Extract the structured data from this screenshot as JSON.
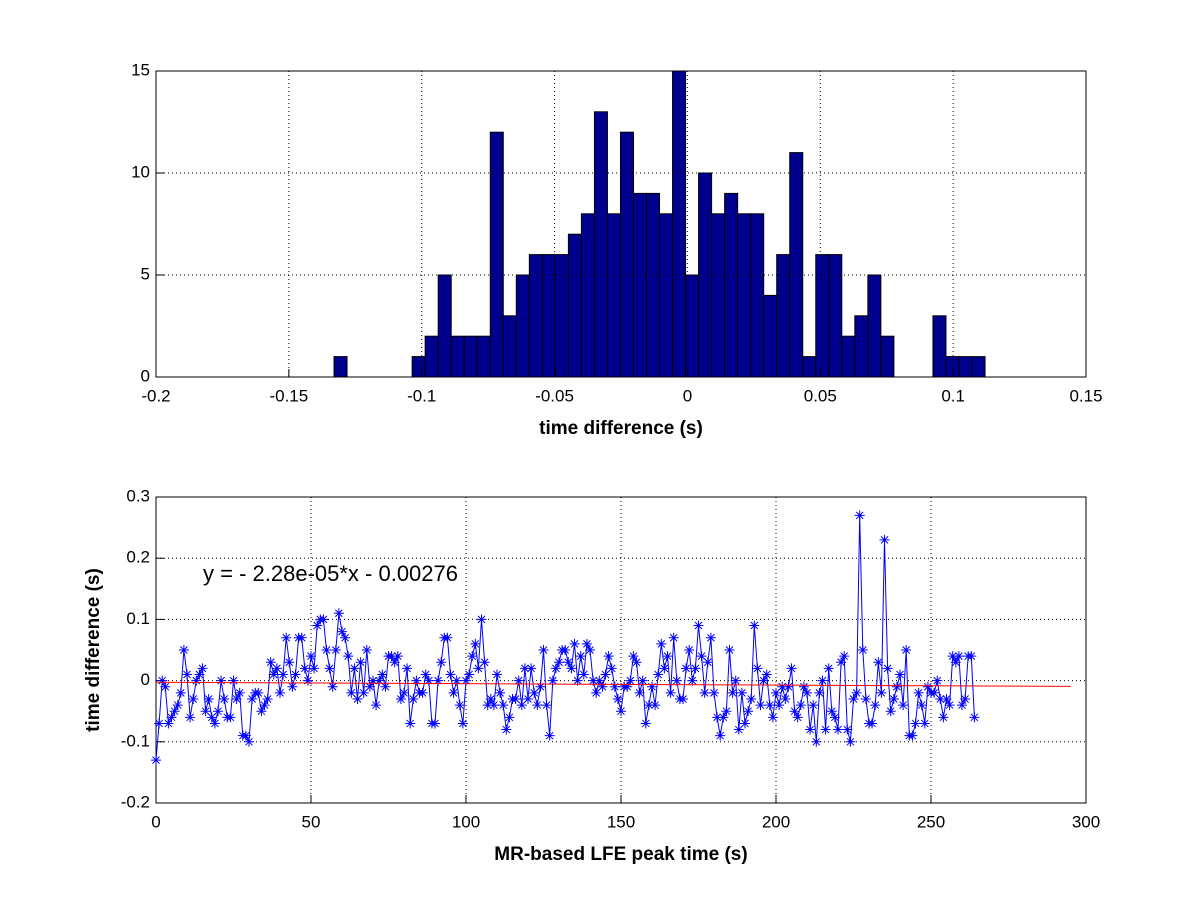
{
  "chart_data": [
    {
      "type": "histogram",
      "xlabel": "time difference (s)",
      "bins": [
        -0.133,
        -0.1281,
        -0.1232,
        -0.1183,
        -0.1134,
        -0.1085,
        -0.1036,
        -0.0987,
        -0.0938,
        -0.0889,
        -0.084,
        -0.0791,
        -0.0742,
        -0.0693,
        -0.0644,
        -0.0595,
        -0.0546,
        -0.0497,
        -0.0448,
        -0.0399,
        -0.035,
        -0.0301,
        -0.0252,
        -0.0203,
        -0.0154,
        -0.0105,
        -0.0056,
        -0.0007,
        0.0042,
        0.0091,
        0.014,
        0.0189,
        0.0238,
        0.0287,
        0.0336,
        0.0385,
        0.0434,
        0.0483,
        0.0532,
        0.0581,
        0.063,
        0.0679,
        0.0728,
        0.0777,
        0.0826,
        0.0875,
        0.0924,
        0.0973,
        0.1022,
        0.1071,
        0.112
      ],
      "counts": [
        1,
        0,
        0,
        0,
        0,
        0,
        1,
        2,
        5,
        2,
        2,
        2,
        12,
        3,
        5,
        6,
        6,
        6,
        7,
        8,
        13,
        8,
        12,
        9,
        9,
        8,
        15,
        5,
        10,
        8,
        9,
        8,
        8,
        4,
        6,
        11,
        1,
        6,
        6,
        2,
        3,
        5,
        2,
        0,
        0,
        0,
        3,
        1,
        1,
        1
      ],
      "color": "#00008f",
      "edgecolor": "#000000",
      "xlim": [
        -0.2,
        0.15
      ],
      "xticks": [
        -0.2,
        -0.15,
        -0.1,
        -0.05,
        0,
        0.05,
        0.1,
        0.15
      ],
      "ylim": [
        0,
        15
      ],
      "yticks": [
        0,
        5,
        10,
        15
      ],
      "grid": true
    },
    {
      "type": "line",
      "xlabel": "MR-based LFE peak time (s)",
      "ylabel": "time difference (s)",
      "annotation": "y = - 2.28e-05*x - 0.00276",
      "series": [
        {
          "color": "#0000ff",
          "marker": "*",
          "x": [
            0,
            1,
            2,
            3,
            4,
            5,
            6,
            7,
            8,
            9,
            10,
            11,
            12,
            13,
            14,
            15,
            16,
            17,
            18,
            19,
            20,
            21,
            22,
            23,
            24,
            25,
            26,
            27,
            28,
            29,
            30,
            31,
            32,
            33,
            34,
            35,
            36,
            37,
            38,
            39,
            40,
            41,
            42,
            43,
            44,
            45,
            46,
            47,
            48,
            49,
            50,
            51,
            52,
            53,
            54,
            55,
            56,
            57,
            58,
            59,
            60,
            61,
            62,
            63,
            64,
            65,
            66,
            67,
            68,
            69,
            70,
            71,
            72,
            73,
            74,
            75,
            76,
            77,
            78,
            79,
            80,
            81,
            82,
            83,
            84,
            85,
            86,
            87,
            88,
            89,
            90,
            91,
            92,
            93,
            94,
            95,
            96,
            97,
            98,
            99,
            100,
            101,
            102,
            103,
            104,
            105,
            106,
            107,
            108,
            109,
            110,
            111,
            112,
            113,
            114,
            115,
            116,
            117,
            118,
            119,
            120,
            121,
            122,
            123,
            124,
            125,
            126,
            127,
            128,
            129,
            130,
            131,
            132,
            133,
            134,
            135,
            136,
            137,
            138,
            139,
            140,
            141,
            142,
            143,
            144,
            145,
            146,
            147,
            148,
            149,
            150,
            151,
            152,
            153,
            154,
            155,
            156,
            157,
            158,
            159,
            160,
            161,
            162,
            163,
            164,
            165,
            166,
            167,
            168,
            169,
            170,
            171,
            172,
            173,
            174,
            175,
            176,
            177,
            178,
            179,
            180,
            181,
            182,
            183,
            184,
            185,
            186,
            187,
            188,
            189,
            190,
            191,
            192,
            193,
            194,
            195,
            196,
            197,
            198,
            199,
            200,
            201,
            202,
            203,
            204,
            205,
            206,
            207,
            208,
            209,
            210,
            211,
            212,
            213,
            214,
            215,
            216,
            217,
            218,
            219,
            220,
            221,
            222,
            223,
            224,
            225,
            226,
            227,
            228,
            229,
            230,
            231,
            232,
            233,
            234,
            235,
            236,
            237,
            238,
            239,
            240,
            241,
            242,
            243,
            244,
            245,
            246,
            247,
            248,
            249,
            250,
            251,
            252,
            253,
            254,
            255,
            256,
            257,
            258,
            259,
            260,
            261,
            262,
            263,
            264
          ],
          "values": [
            -0.13,
            -0.07,
            0.0,
            -0.01,
            -0.07,
            -0.06,
            -0.05,
            -0.04,
            -0.02,
            0.05,
            0.01,
            -0.06,
            -0.03,
            0.0,
            0.01,
            0.02,
            -0.05,
            -0.03,
            -0.06,
            -0.07,
            -0.05,
            0.0,
            -0.03,
            -0.06,
            -0.06,
            0.0,
            -0.03,
            -0.02,
            -0.09,
            -0.09,
            -0.1,
            -0.03,
            -0.02,
            -0.02,
            -0.05,
            -0.04,
            -0.03,
            0.03,
            0.01,
            0.02,
            -0.02,
            0.01,
            0.07,
            0.03,
            -0.01,
            0.01,
            0.07,
            0.07,
            0.02,
            0.0,
            0.04,
            0.02,
            0.09,
            0.1,
            0.1,
            0.05,
            0.02,
            -0.01,
            0.05,
            0.11,
            0.08,
            0.07,
            0.04,
            -0.02,
            0.02,
            -0.03,
            0.03,
            -0.02,
            0.05,
            -0.01,
            0.0,
            -0.04,
            0.0,
            0.01,
            -0.01,
            0.04,
            0.04,
            0.03,
            0.04,
            -0.03,
            -0.02,
            0.02,
            -0.07,
            -0.03,
            0.0,
            -0.02,
            -0.02,
            0.01,
            0.0,
            -0.07,
            -0.07,
            0.0,
            0.03,
            0.07,
            0.07,
            0.01,
            -0.02,
            0.0,
            -0.04,
            -0.07,
            0.0,
            0.01,
            0.04,
            0.06,
            0.02,
            0.1,
            0.03,
            -0.04,
            -0.03,
            -0.04,
            0.01,
            -0.02,
            -0.04,
            -0.08,
            -0.06,
            -0.03,
            -0.03,
            0.0,
            -0.04,
            0.02,
            -0.03,
            0.02,
            -0.02,
            -0.04,
            -0.01,
            0.05,
            -0.04,
            -0.09,
            0.0,
            0.02,
            0.03,
            0.05,
            0.05,
            0.03,
            0.02,
            0.06,
            0.0,
            0.04,
            0.01,
            0.06,
            0.05,
            0.0,
            -0.02,
            0.0,
            -0.01,
            0.01,
            0.04,
            0.02,
            -0.01,
            -0.03,
            -0.05,
            -0.01,
            -0.01,
            0.0,
            0.04,
            0.03,
            -0.02,
            0.0,
            -0.07,
            -0.04,
            -0.01,
            -0.04,
            0.01,
            0.06,
            0.02,
            0.04,
            -0.02,
            0.07,
            0.0,
            -0.03,
            -0.03,
            0.02,
            0.05,
            0.0,
            0.02,
            0.09,
            0.04,
            -0.02,
            0.03,
            0.07,
            -0.02,
            -0.06,
            -0.09,
            -0.06,
            -0.05,
            0.05,
            -0.02,
            0.0,
            -0.08,
            -0.02,
            -0.07,
            -0.05,
            -0.03,
            0.09,
            0.02,
            -0.04,
            0.0,
            0.01,
            -0.04,
            -0.06,
            -0.02,
            -0.04,
            -0.01,
            -0.03,
            -0.01,
            0.02,
            -0.05,
            -0.06,
            -0.04,
            -0.01,
            -0.02,
            -0.08,
            -0.04,
            -0.1,
            -0.02,
            0.0,
            -0.08,
            0.02,
            -0.05,
            -0.06,
            -0.08,
            0.03,
            0.04,
            -0.08,
            -0.1,
            -0.03,
            -0.02,
            0.27,
            0.05,
            -0.03,
            -0.07,
            -0.07,
            -0.04,
            0.03,
            -0.02,
            0.23,
            0.02,
            -0.05,
            -0.03,
            -0.01,
            0.01,
            -0.04,
            0.05,
            -0.09,
            -0.09,
            -0.07,
            -0.02,
            -0.04,
            -0.07,
            -0.01,
            -0.02,
            -0.02,
            0.0,
            -0.03,
            -0.06,
            -0.03,
            -0.04,
            0.04,
            0.03,
            0.04,
            -0.04,
            -0.03,
            0.04,
            0.04,
            -0.06
          ]
        },
        {
          "color": "#ff0000",
          "x": [
            0,
            295
          ],
          "values": [
            -0.00276,
            -0.00949
          ]
        }
      ],
      "xlim": [
        0,
        300
      ],
      "xticks": [
        0,
        50,
        100,
        150,
        200,
        250,
        300
      ],
      "ylim": [
        -0.2,
        0.3
      ],
      "yticks": [
        -0.2,
        -0.1,
        0,
        0.1,
        0.2,
        0.3
      ],
      "grid": true
    }
  ]
}
